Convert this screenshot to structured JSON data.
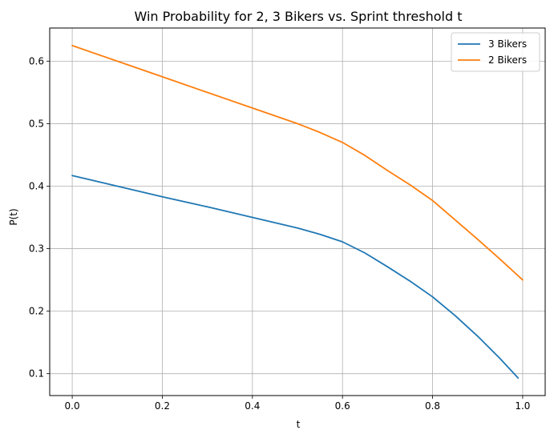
{
  "chart_data": {
    "type": "line",
    "title": "Win Probability for 2, 3 Bikers vs. Sprint threshold t",
    "xlabel": "t",
    "ylabel": "P(t)",
    "xlim": [
      -0.05,
      1.05
    ],
    "ylim": [
      0.065,
      0.653
    ],
    "xticks": [
      "0.0",
      "0.2",
      "0.4",
      "0.6",
      "0.8",
      "1.0"
    ],
    "yticks": [
      "0.1",
      "0.2",
      "0.3",
      "0.4",
      "0.5",
      "0.6"
    ],
    "grid": true,
    "legend_position": "top-right",
    "series": [
      {
        "name": "3 Bikers",
        "color": "#1f77b4",
        "x": [
          0.0,
          0.1,
          0.2,
          0.3,
          0.4,
          0.5,
          0.55,
          0.6,
          0.65,
          0.7,
          0.75,
          0.8,
          0.85,
          0.9,
          0.95,
          0.99
        ],
        "y": [
          0.417,
          0.4,
          0.383,
          0.367,
          0.35,
          0.333,
          0.323,
          0.311,
          0.293,
          0.271,
          0.248,
          0.223,
          0.193,
          0.16,
          0.124,
          0.093
        ]
      },
      {
        "name": "2 Bikers",
        "color": "#ff7f0e",
        "x": [
          0.0,
          0.1,
          0.2,
          0.3,
          0.4,
          0.5,
          0.55,
          0.6,
          0.65,
          0.7,
          0.75,
          0.8,
          0.85,
          0.9,
          0.95,
          1.0
        ],
        "y": [
          0.625,
          0.6,
          0.575,
          0.55,
          0.525,
          0.5,
          0.486,
          0.47,
          0.449,
          0.425,
          0.402,
          0.377,
          0.346,
          0.315,
          0.283,
          0.25
        ]
      }
    ]
  }
}
